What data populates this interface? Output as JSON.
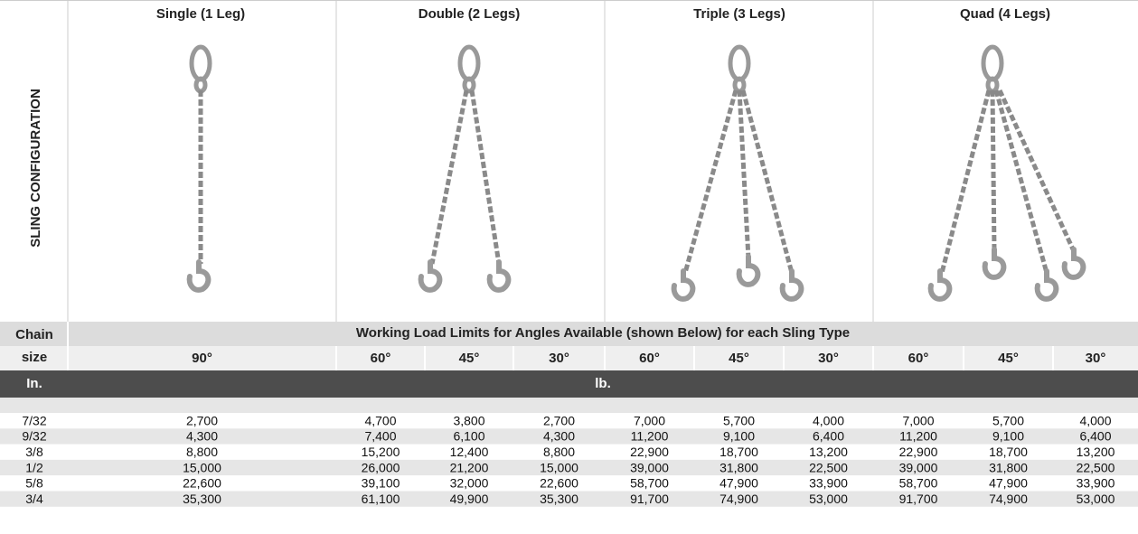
{
  "header": {
    "side_label": "SLING CONFIGURATION",
    "configurations": [
      "Single (1 Leg)",
      "Double (2 Legs)",
      "Triple (3 Legs)",
      "Quad (4 Legs)"
    ]
  },
  "table": {
    "chain_label": "Chain",
    "size_label": "size",
    "title": "Working Load Limits for Angles Available (shown Below) for each Sling Type",
    "angles": [
      "90°",
      "60°",
      "45°",
      "30°",
      "60°",
      "45°",
      "30°",
      "60°",
      "45°",
      "30°"
    ],
    "units": [
      "In.",
      "lb."
    ],
    "rows": [
      [
        "7/32",
        "2,700",
        "4,700",
        "3,800",
        "2,700",
        "7,000",
        "5,700",
        "4,000",
        "7,000",
        "5,700",
        "4,000"
      ],
      [
        "9/32",
        "4,300",
        "7,400",
        "6,100",
        "4,300",
        "11,200",
        "9,100",
        "6,400",
        "11,200",
        "9,100",
        "6,400"
      ],
      [
        "3/8",
        "8,800",
        "15,200",
        "12,400",
        "8,800",
        "22,900",
        "18,700",
        "13,200",
        "22,900",
        "18,700",
        "13,200"
      ],
      [
        "1/2",
        "15,000",
        "26,000",
        "21,200",
        "15,000",
        "39,000",
        "31,800",
        "22,500",
        "39,000",
        "31,800",
        "22,500"
      ],
      [
        "5/8",
        "22,600",
        "39,100",
        "32,000",
        "22,600",
        "58,700",
        "47,900",
        "33,900",
        "58,700",
        "47,900",
        "33,900"
      ],
      [
        "3/4",
        "35,300",
        "61,100",
        "49,900",
        "35,300",
        "91,700",
        "74,900",
        "53,000",
        "91,700",
        "74,900",
        "53,000"
      ]
    ]
  }
}
